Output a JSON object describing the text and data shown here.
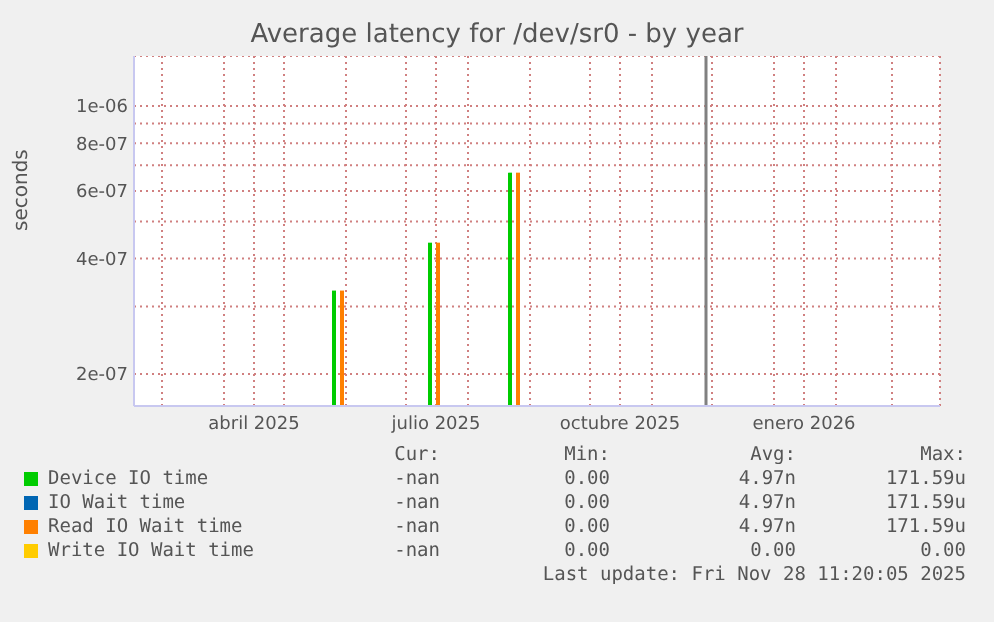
{
  "chart_data": {
    "type": "bar",
    "title": "Average latency for /dev/sr0 - by year",
    "ylabel": "seconds",
    "log": "y",
    "x": [
      "2025-05-29",
      "2025-07-16",
      "2025-08-25"
    ],
    "series": [
      {
        "name": "Device IO time",
        "color": "#00cc00",
        "values": [
          3.3e-07,
          4.4e-07,
          6.7e-07
        ]
      },
      {
        "name": "IO Wait time",
        "color": "#0066b3",
        "values": [
          null,
          null,
          null
        ]
      },
      {
        "name": "Read IO Wait time",
        "color": "#ff8000",
        "values": [
          3.3e-07,
          4.4e-07,
          6.7e-07
        ]
      },
      {
        "name": "Write IO Wait time",
        "color": "#ffcc00",
        "values": [
          null,
          null,
          null
        ]
      }
    ],
    "xlim": [
      "2025-02-15",
      "2026-03-25"
    ],
    "xticks": [
      {
        "value": "2025-03-01",
        "label": null
      },
      {
        "value": "2025-04-01",
        "label": null
      },
      {
        "value": "2025-04-16",
        "label": "abril 2025"
      },
      {
        "value": "2025-05-01",
        "label": null
      },
      {
        "value": "2025-06-01",
        "label": null
      },
      {
        "value": "2025-07-01",
        "label": null
      },
      {
        "value": "2025-07-16",
        "label": "julio 2025"
      },
      {
        "value": "2025-08-01",
        "label": null
      },
      {
        "value": "2025-09-01",
        "label": null
      },
      {
        "value": "2025-10-01",
        "label": null
      },
      {
        "value": "2025-10-16",
        "label": "octubre 2025"
      },
      {
        "value": "2025-11-01",
        "label": null
      },
      {
        "value": "2025-12-01",
        "label": null
      },
      {
        "value": "2026-01-01",
        "label": null
      },
      {
        "value": "2026-01-16",
        "label": "enero 2026"
      },
      {
        "value": "2026-02-01",
        "label": null
      },
      {
        "value": "2026-03-01",
        "label": null
      }
    ],
    "ylim": [
      1.65e-07,
      1.35e-06
    ],
    "yticks": [
      {
        "value": 2e-07,
        "label": "2e-07"
      },
      {
        "value": 3e-07,
        "label": null
      },
      {
        "value": 4e-07,
        "label": "4e-07"
      },
      {
        "value": 5e-07,
        "label": null
      },
      {
        "value": 6e-07,
        "label": "6e-07"
      },
      {
        "value": 7e-07,
        "label": null
      },
      {
        "value": 8e-07,
        "label": "8e-07"
      },
      {
        "value": 9e-07,
        "label": null
      },
      {
        "value": 1e-06,
        "label": "1e-06"
      }
    ],
    "ref_lines": [
      {
        "axis": "x",
        "value": "2025-11-28",
        "color": "#808080"
      }
    ],
    "grid": true,
    "legend": "bottom",
    "annotations": [
      "Cur:",
      "Min:",
      "Avg:",
      "Max:",
      "-nan",
      "0.00",
      "4.97n",
      "171.59u",
      "-nan",
      "0.00",
      "4.97n",
      "171.59u",
      "-nan",
      "0.00",
      "4.97n",
      "171.59u",
      "-nan",
      "0.00",
      "0.00",
      "0.00",
      "Last update: Fri Nov 28 11:20:05 2025"
    ]
  }
}
